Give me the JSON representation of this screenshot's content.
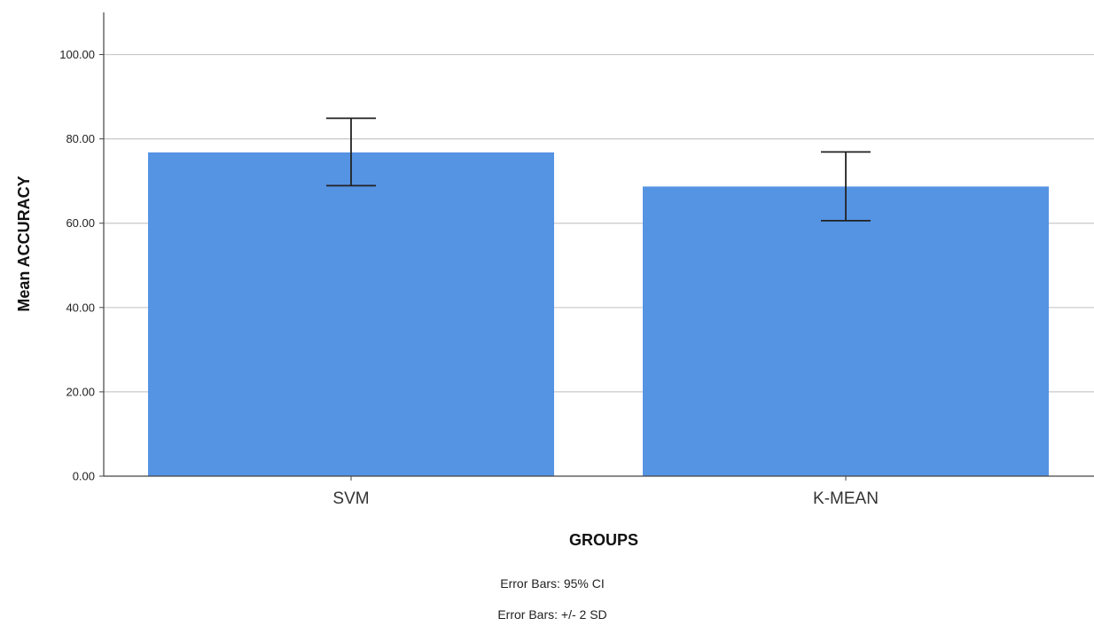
{
  "chart_data": {
    "type": "bar",
    "categories": [
      "SVM",
      "K-MEAN"
    ],
    "values": [
      76.8,
      68.7
    ],
    "error_bars": {
      "lower": [
        68.9,
        60.6
      ],
      "upper": [
        84.9,
        76.9
      ]
    },
    "xlabel": "GROUPS",
    "ylabel": "Mean ACCURACY",
    "ylim": [
      0,
      110
    ],
    "y_ticks": [
      "0.00",
      "20.00",
      "40.00",
      "60.00",
      "80.00",
      "100.00"
    ],
    "grid": true,
    "bar_color": "#5593e3",
    "footnotes": [
      "Error Bars: 95% CI",
      "Error Bars: +/- 2 SD"
    ]
  }
}
